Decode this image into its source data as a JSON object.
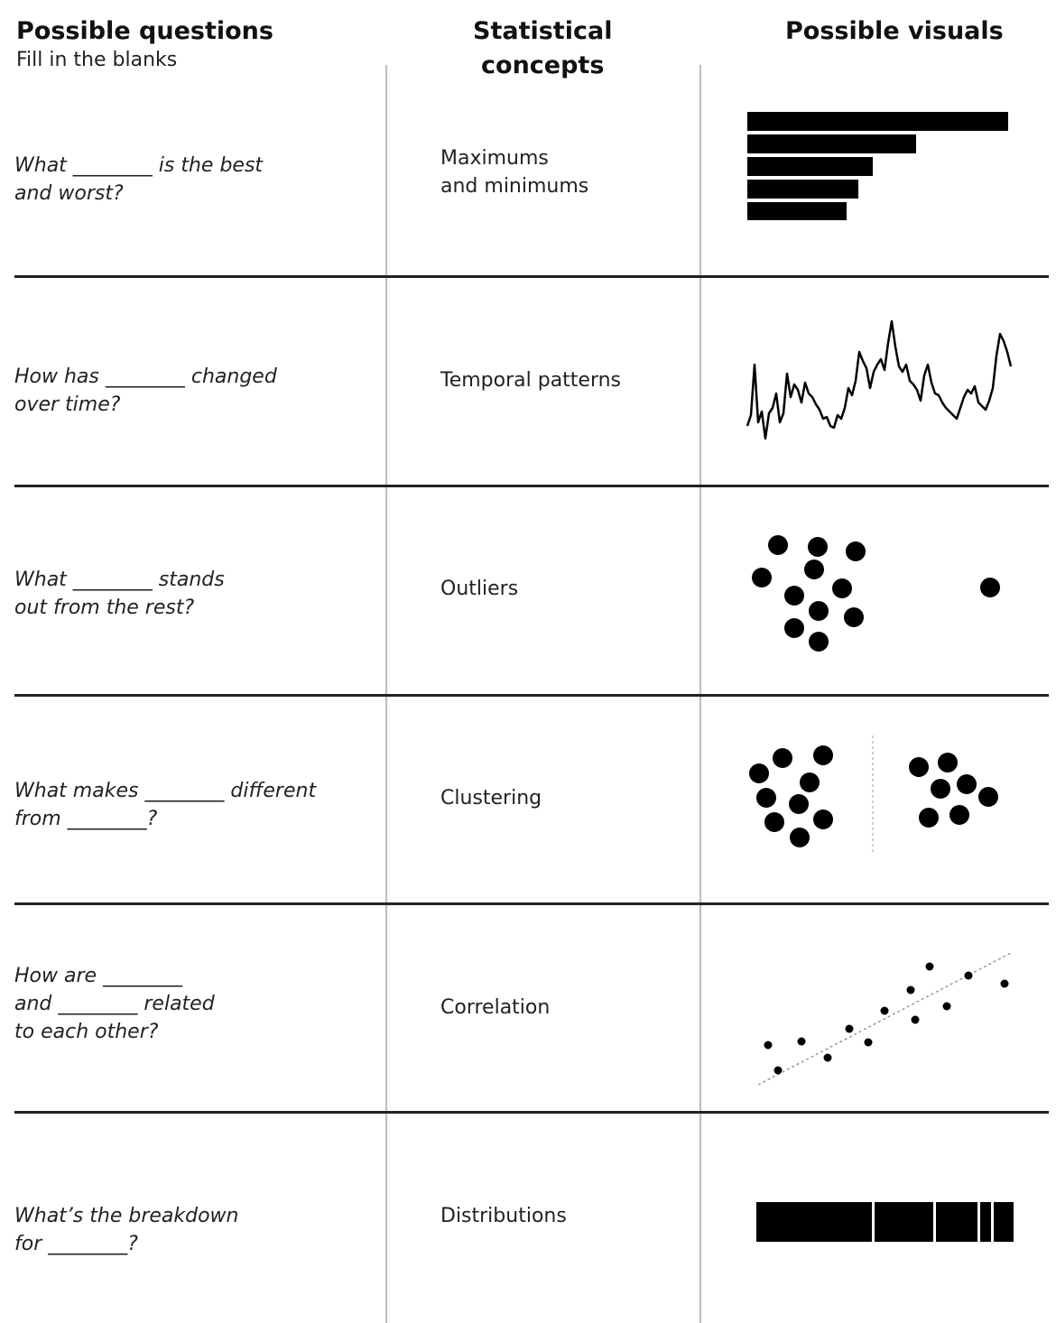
{
  "headers": {
    "questions": "Possible questions",
    "questions_sub": "Fill in the blanks",
    "concepts": "Statistical\nconcepts",
    "visuals": "Possible visuals"
  },
  "rows": [
    {
      "question": "What ________ is the best\nand worst?",
      "concept": "Maximums\nand minimums",
      "visual": "horizontal-bar-chart-icon"
    },
    {
      "question": "How has ________ changed\nover time?",
      "concept": "Temporal patterns",
      "visual": "line-chart-icon"
    },
    {
      "question": "What ________ stands\nout from the rest?",
      "concept": "Outliers",
      "visual": "outlier-dots-icon"
    },
    {
      "question": "What makes ________ different\nfrom ________?",
      "concept": "Clustering",
      "visual": "cluster-dots-icon"
    },
    {
      "question": "How are ________\nand ________ related\nto each other?",
      "concept": "Correlation",
      "visual": "scatter-trend-icon"
    },
    {
      "question": "What’s the breakdown\nfor ________?",
      "concept": "Distributions",
      "visual": "stacked-bar-icon"
    }
  ]
}
